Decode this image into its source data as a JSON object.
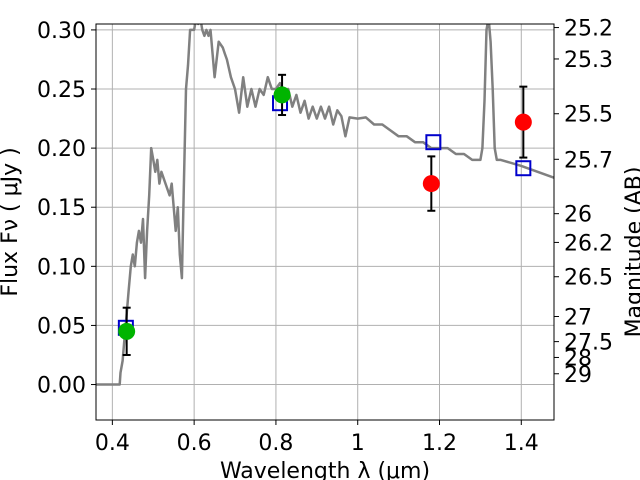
{
  "chart_data": {
    "type": "scatter",
    "title": "",
    "xlabel": "Wavelength  λ (μm)",
    "ylabel": "Flux  Fν  ( μJy )",
    "ylabel_right": "Magnitude (AB)",
    "xlim": [
      0.36,
      1.48
    ],
    "ylim": [
      -0.03,
      0.305
    ],
    "grid": true,
    "x_ticks": [
      0.4,
      0.6,
      0.8,
      1.0,
      1.2,
      1.4
    ],
    "x_tick_labels": [
      "0.4",
      "0.6",
      "0.8",
      "1",
      "1.2",
      "1.4"
    ],
    "y_ticks": [
      0.0,
      0.05,
      0.1,
      0.15,
      0.2,
      0.25,
      0.3
    ],
    "y_tick_labels": [
      "0.00",
      "0.05",
      "0.10",
      "0.15",
      "0.20",
      "0.25",
      "0.30"
    ],
    "right_ticks": [
      25.2,
      25.3,
      25.5,
      25.7,
      26,
      26.2,
      26.5,
      27,
      27.5,
      28,
      29
    ],
    "right_tick_labels": [
      "25.2",
      "25.3",
      "25.5",
      "25.7",
      "26",
      "26.2",
      "26.5",
      "27",
      "27.5",
      "28",
      "29"
    ],
    "colors": {
      "model": "#808080",
      "green": "#00b400",
      "red": "#ff0000",
      "square": "#0000cc",
      "errorbar": "#000000",
      "grid": "#b0b0b0"
    },
    "series": [
      {
        "name": "model SED",
        "kind": "line",
        "x": [
          0.36,
          0.418,
          0.42,
          0.425,
          0.43,
          0.435,
          0.44,
          0.445,
          0.45,
          0.455,
          0.46,
          0.465,
          0.47,
          0.475,
          0.48,
          0.485,
          0.49,
          0.495,
          0.5,
          0.505,
          0.51,
          0.515,
          0.52,
          0.53,
          0.54,
          0.545,
          0.55,
          0.555,
          0.56,
          0.565,
          0.57,
          0.575,
          0.58,
          0.585,
          0.59,
          0.6,
          0.605,
          0.61,
          0.615,
          0.62,
          0.625,
          0.63,
          0.635,
          0.64,
          0.65,
          0.66,
          0.67,
          0.675,
          0.68,
          0.69,
          0.7,
          0.71,
          0.72,
          0.73,
          0.74,
          0.75,
          0.76,
          0.77,
          0.78,
          0.79,
          0.8,
          0.81,
          0.82,
          0.83,
          0.84,
          0.85,
          0.86,
          0.87,
          0.88,
          0.89,
          0.9,
          0.91,
          0.92,
          0.93,
          0.94,
          0.95,
          0.96,
          0.97,
          0.98,
          1.0,
          1.02,
          1.04,
          1.06,
          1.08,
          1.1,
          1.12,
          1.14,
          1.16,
          1.18,
          1.2,
          1.22,
          1.24,
          1.26,
          1.28,
          1.3,
          1.305,
          1.31,
          1.315,
          1.32,
          1.325,
          1.33,
          1.335,
          1.34,
          1.35,
          1.4,
          1.44,
          1.48
        ],
        "y": [
          0.0,
          0.0,
          0.01,
          0.02,
          0.04,
          0.06,
          0.08,
          0.1,
          0.11,
          0.1,
          0.12,
          0.13,
          0.12,
          0.14,
          0.09,
          0.13,
          0.16,
          0.2,
          0.19,
          0.18,
          0.19,
          0.17,
          0.18,
          0.17,
          0.16,
          0.17,
          0.15,
          0.13,
          0.15,
          0.11,
          0.09,
          0.17,
          0.25,
          0.27,
          0.3,
          0.3,
          0.31,
          0.305,
          0.31,
          0.3,
          0.295,
          0.3,
          0.295,
          0.3,
          0.26,
          0.29,
          0.285,
          0.28,
          0.275,
          0.26,
          0.25,
          0.23,
          0.26,
          0.235,
          0.25,
          0.235,
          0.25,
          0.245,
          0.26,
          0.25,
          0.25,
          0.255,
          0.245,
          0.25,
          0.235,
          0.245,
          0.23,
          0.24,
          0.225,
          0.235,
          0.225,
          0.235,
          0.225,
          0.235,
          0.22,
          0.232,
          0.227,
          0.21,
          0.226,
          0.225,
          0.226,
          0.22,
          0.22,
          0.215,
          0.21,
          0.21,
          0.205,
          0.205,
          0.2,
          0.2,
          0.2,
          0.195,
          0.195,
          0.19,
          0.19,
          0.2,
          0.24,
          0.3,
          0.31,
          0.29,
          0.25,
          0.2,
          0.19,
          0.19,
          0.185,
          0.18,
          0.175
        ]
      },
      {
        "name": "green points",
        "kind": "points",
        "x": [
          0.435,
          0.815
        ],
        "y": [
          0.045,
          0.245
        ],
        "yerr": [
          0.02,
          0.017
        ]
      },
      {
        "name": "red points",
        "kind": "points",
        "x": [
          1.18,
          1.405
        ],
        "y": [
          0.17,
          0.222
        ],
        "yerr": [
          0.023,
          0.03
        ]
      },
      {
        "name": "model photometry",
        "kind": "squares",
        "x": [
          0.433,
          0.81,
          1.185,
          1.405
        ],
        "y": [
          0.048,
          0.238,
          0.205,
          0.183
        ]
      }
    ]
  }
}
